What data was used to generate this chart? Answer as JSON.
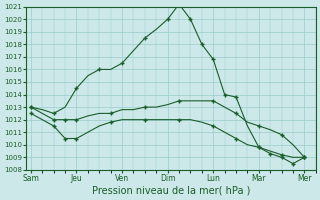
{
  "xlabel": "Pression niveau de la mer( hPa )",
  "ylim": [
    1008,
    1021
  ],
  "yticks": [
    1008,
    1009,
    1010,
    1011,
    1012,
    1013,
    1014,
    1015,
    1016,
    1017,
    1018,
    1019,
    1020,
    1021
  ],
  "xtick_labels": [
    "Sam",
    "Jeu",
    "Ven",
    "Dim",
    "Lun",
    "Mar",
    "Mer"
  ],
  "background_color": "#cce8e8",
  "grid_color": "#99cccc",
  "line_color": "#1a5c2a",
  "series": [
    {
      "x": [
        0,
        0.5,
        1.0,
        1.5,
        2.0,
        2.5,
        3.0,
        3.5,
        4.0,
        4.5,
        5.0,
        5.5,
        6.0,
        6.5,
        7.0,
        7.5,
        8.0,
        8.5,
        9.0,
        9.5,
        10.0,
        10.5,
        11.0,
        11.5,
        12.0
      ],
      "y": [
        1013.0,
        1012.8,
        1012.5,
        1013.0,
        1014.5,
        1015.5,
        1016.0,
        1016.0,
        1016.5,
        1017.5,
        1018.5,
        1019.2,
        1020.0,
        1021.2,
        1020.0,
        1018.0,
        1016.8,
        1014.0,
        1013.8,
        1011.5,
        1009.8,
        1009.3,
        1009.0,
        1008.5,
        1009.0
      ]
    },
    {
      "x": [
        0,
        0.5,
        1.0,
        1.5,
        2.0,
        2.5,
        3.0,
        3.5,
        4.0,
        4.5,
        5.0,
        5.5,
        6.0,
        6.5,
        7.0,
        7.5,
        8.0,
        8.5,
        9.0,
        9.5,
        10.0,
        10.5,
        11.0,
        11.5,
        12.0
      ],
      "y": [
        1013.0,
        1012.5,
        1012.0,
        1012.0,
        1012.0,
        1012.3,
        1012.5,
        1012.5,
        1012.8,
        1012.8,
        1013.0,
        1013.0,
        1013.2,
        1013.5,
        1013.5,
        1013.5,
        1013.5,
        1013.0,
        1012.5,
        1011.8,
        1011.5,
        1011.2,
        1010.8,
        1010.0,
        1009.0
      ]
    },
    {
      "x": [
        0,
        0.5,
        1.0,
        1.5,
        2.0,
        2.5,
        3.0,
        3.5,
        4.0,
        4.5,
        5.0,
        5.5,
        6.0,
        6.5,
        7.0,
        7.5,
        8.0,
        8.5,
        9.0,
        9.5,
        10.0,
        10.5,
        11.0,
        11.5,
        12.0
      ],
      "y": [
        1012.5,
        1012.0,
        1011.5,
        1010.5,
        1010.5,
        1011.0,
        1011.5,
        1011.8,
        1012.0,
        1012.0,
        1012.0,
        1012.0,
        1012.0,
        1012.0,
        1012.0,
        1011.8,
        1011.5,
        1011.0,
        1010.5,
        1010.0,
        1009.8,
        1009.5,
        1009.2,
        1009.0,
        1009.0
      ]
    }
  ],
  "marker_series": [
    {
      "x": [
        0,
        1.0,
        2.0,
        3.0,
        4.0,
        5.0,
        6.0,
        6.5,
        7.0,
        7.5,
        8.0,
        8.5,
        9.0,
        10.0,
        10.5,
        11.0,
        11.5,
        12.0
      ],
      "y": [
        1013.0,
        1012.5,
        1014.5,
        1016.0,
        1016.5,
        1018.5,
        1020.0,
        1021.2,
        1020.0,
        1018.0,
        1016.8,
        1014.0,
        1013.8,
        1009.8,
        1009.3,
        1009.0,
        1008.5,
        1009.0
      ]
    },
    {
      "x": [
        0,
        1.0,
        1.5,
        2.0,
        3.5,
        5.0,
        6.5,
        8.0,
        9.0,
        10.0,
        11.0,
        12.0
      ],
      "y": [
        1013.0,
        1012.0,
        1012.0,
        1012.0,
        1012.5,
        1013.0,
        1013.5,
        1013.5,
        1012.5,
        1011.5,
        1010.8,
        1009.0
      ]
    },
    {
      "x": [
        0,
        1.0,
        1.5,
        2.0,
        3.5,
        5.0,
        6.5,
        8.0,
        9.0,
        10.0,
        11.0,
        12.0
      ],
      "y": [
        1012.5,
        1011.5,
        1010.5,
        1010.5,
        1011.8,
        1012.0,
        1012.0,
        1011.5,
        1010.5,
        1009.8,
        1009.2,
        1009.0
      ]
    }
  ]
}
